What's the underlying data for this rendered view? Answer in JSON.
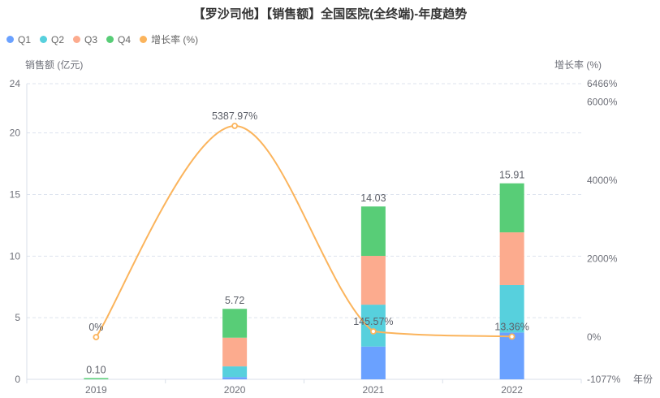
{
  "title": "【罗沙司他】【销售额】全国医院(全终端)-年度趋势",
  "legend": {
    "items": [
      {
        "label": "Q1",
        "color": "#6aa1ff"
      },
      {
        "label": "Q2",
        "color": "#57d0dd"
      },
      {
        "label": "Q3",
        "color": "#fcab8e"
      },
      {
        "label": "Q4",
        "color": "#58cd77"
      },
      {
        "label": "增长率 (%)",
        "color": "#fbb45c"
      }
    ]
  },
  "chart_data": {
    "type": "bar",
    "subtype": "stacked-bars-with-growth-line",
    "title": "【罗沙司他】【销售额】全国医院(全终端)-年度趋势",
    "categories": [
      "2019",
      "2020",
      "2021",
      "2022"
    ],
    "series": [
      {
        "name": "Q1",
        "type": "bar",
        "color": "#6aa1ff",
        "values": [
          0,
          0.18,
          2.66,
          3.8
        ]
      },
      {
        "name": "Q2",
        "type": "bar",
        "color": "#57d0dd",
        "values": [
          0,
          0.87,
          3.4,
          3.85
        ]
      },
      {
        "name": "Q3",
        "type": "bar",
        "color": "#fcab8e",
        "values": [
          0,
          2.33,
          3.96,
          4.28
        ]
      },
      {
        "name": "Q4",
        "type": "bar",
        "color": "#58cd77",
        "values": [
          0.1,
          2.34,
          4.01,
          3.98
        ]
      },
      {
        "name": "增长率 (%)",
        "type": "line",
        "color": "#fbb45c",
        "values": [
          0,
          5387.97,
          145.57,
          13.36
        ],
        "labels": [
          "0%",
          "5387.97%",
          "145.57%",
          "13.36%"
        ]
      }
    ],
    "bar_totals": [
      0.1,
      5.72,
      14.03,
      15.91
    ],
    "bar_total_labels": [
      "0.10",
      "5.72",
      "14.03",
      "15.91"
    ],
    "left_axis": {
      "name": "销售额 (亿元)",
      "min": 0,
      "max": 24,
      "ticks": [
        0,
        5,
        10,
        15,
        20,
        24
      ],
      "tick_labels": [
        "0",
        "5",
        "10",
        "15",
        "20",
        "24"
      ]
    },
    "right_axis": {
      "name": "增长率 (%)",
      "min": -1077,
      "max": 6466,
      "ticks": [
        -1077,
        0,
        2000,
        4000,
        6000,
        6466
      ],
      "tick_labels": [
        "-1077%",
        "0%",
        "2000%",
        "4000%",
        "6000%",
        "6466%"
      ]
    },
    "x_axis": {
      "name": "年份"
    },
    "grid": true,
    "legend_position": "top-left"
  }
}
